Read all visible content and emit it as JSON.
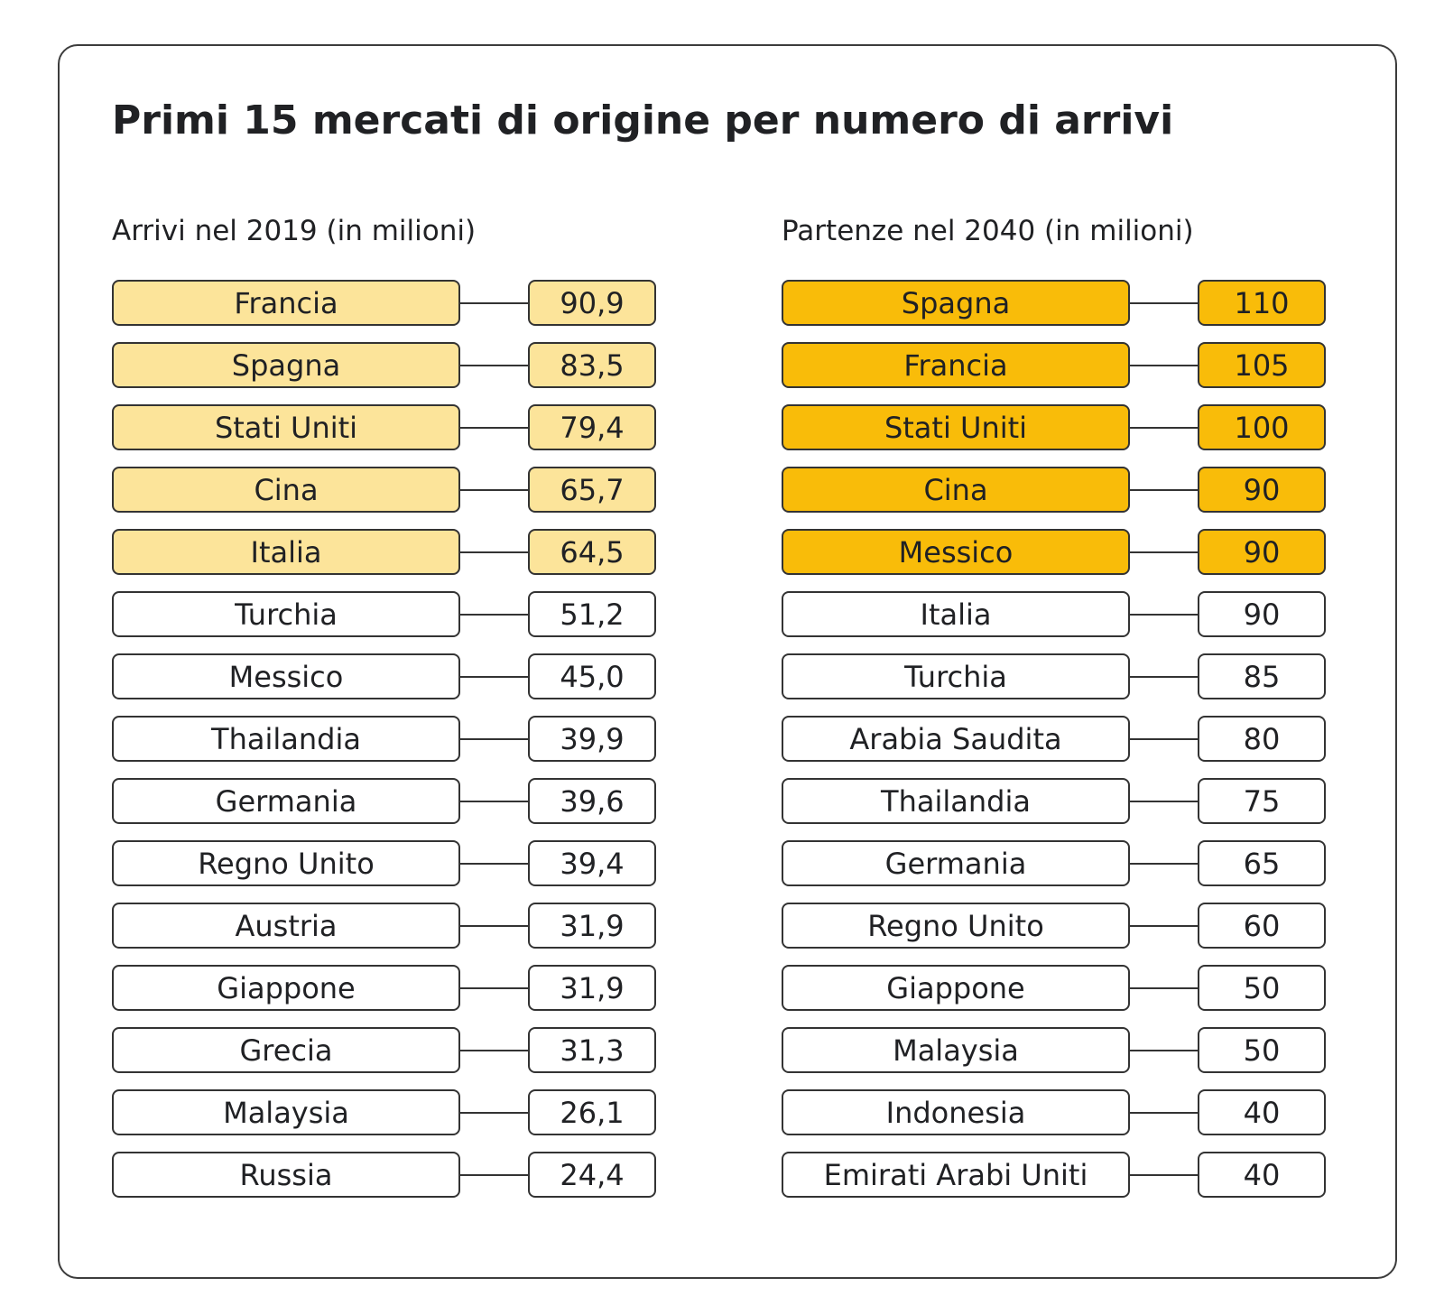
{
  "title": "Primi 15 mercati di origine per numero di arrivi",
  "columns": [
    {
      "heading": "Arrivi nel 2019 (in milioni)",
      "rows": [
        [
          "Francia",
          "90,9"
        ],
        [
          "Spagna",
          "83,5"
        ],
        [
          "Stati Uniti",
          "79,4"
        ],
        [
          "Cina",
          "65,7"
        ],
        [
          "Italia",
          "64,5"
        ],
        [
          "Turchia",
          "51,2"
        ],
        [
          "Messico",
          "45,0"
        ],
        [
          "Thailandia",
          "39,9"
        ],
        [
          "Germania",
          "39,6"
        ],
        [
          "Regno Unito",
          "39,4"
        ],
        [
          "Austria",
          "31,9"
        ],
        [
          "Giappone",
          "31,9"
        ],
        [
          "Grecia",
          "31,3"
        ],
        [
          "Malaysia",
          "26,1"
        ],
        [
          "Russia",
          "24,4"
        ]
      ]
    },
    {
      "heading": "Partenze nel 2040 (in milioni)",
      "rows": [
        [
          "Spagna",
          "110"
        ],
        [
          "Francia",
          "105"
        ],
        [
          "Stati Uniti",
          "100"
        ],
        [
          "Cina",
          "90"
        ],
        [
          "Messico",
          "90"
        ],
        [
          "Italia",
          "90"
        ],
        [
          "Turchia",
          "85"
        ],
        [
          "Arabia Saudita",
          "80"
        ],
        [
          "Thailandia",
          "75"
        ],
        [
          "Germania",
          "65"
        ],
        [
          "Regno Unito",
          "60"
        ],
        [
          "Giappone",
          "50"
        ],
        [
          "Malaysia",
          "50"
        ],
        [
          "Indonesia",
          "40"
        ],
        [
          "Emirati Arabi Uniti",
          "40"
        ]
      ]
    }
  ]
}
